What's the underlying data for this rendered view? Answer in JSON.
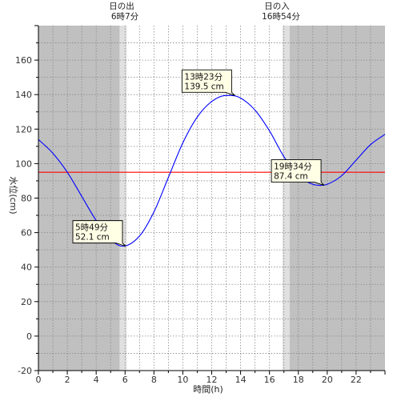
{
  "chart_data": {
    "type": "line",
    "xlabel": "時間(h)",
    "ylabel": "水位(cm)",
    "xlim": [
      0,
      24
    ],
    "ylim": [
      -20,
      180
    ],
    "x_ticks": [
      0,
      2,
      4,
      6,
      8,
      10,
      12,
      14,
      16,
      18,
      20,
      22
    ],
    "y_ticks": [
      -20,
      0,
      20,
      40,
      60,
      80,
      100,
      120,
      140,
      160
    ],
    "grid": true,
    "sunrise": {
      "label": "日の出",
      "time": "6時7分",
      "hour": 6.117
    },
    "sunset": {
      "label": "日の入",
      "time": "16時54分",
      "hour": 16.9
    },
    "reference_line": {
      "value": 95,
      "color": "#ff0000"
    },
    "series": [
      {
        "color": "#0000ff",
        "x": [
          0,
          1,
          2,
          3,
          4,
          5,
          5.82,
          7,
          8,
          9,
          10,
          11,
          12,
          13,
          13.38,
          14,
          15,
          16,
          17,
          18,
          19,
          19.57,
          20,
          21,
          22,
          23,
          24
        ],
        "y": [
          114,
          106,
          95,
          81,
          67,
          56,
          52.1,
          58,
          72,
          92,
          112,
          127,
          136,
          139.5,
          139.5,
          138,
          131,
          119,
          104,
          93,
          88,
          87.4,
          88,
          93,
          102,
          111,
          117
        ]
      }
    ],
    "annotations": [
      {
        "time": "5時49分",
        "value": "52.1 cm",
        "x": 5.82,
        "y": 52.1
      },
      {
        "time": "13時23分",
        "value": "139.5 cm",
        "x": 13.38,
        "y": 139.5
      },
      {
        "time": "19時34分",
        "value": "87.4 cm",
        "x": 19.57,
        "y": 87.4
      }
    ],
    "colors": {
      "night": "#c0c0c0",
      "twilight": "#e0e0e0",
      "day": "#ffffff",
      "curve": "#0000ff",
      "reference": "#ff0000"
    }
  }
}
